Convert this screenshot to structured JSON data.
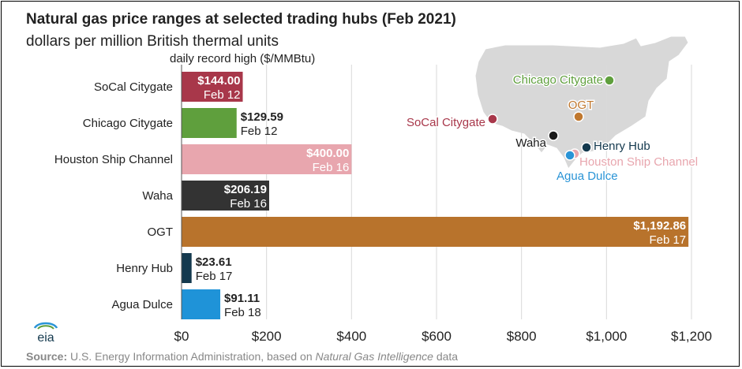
{
  "title": "Natural gas price ranges at selected trading hubs (Feb 2021)",
  "subtitle": "dollars per million British thermal units",
  "source_label": "Source:",
  "source_text": " U.S. Energy Information Administration, based on ",
  "source_italic": "Natural Gas Intelligence",
  "source_end": " data",
  "logo_text": "eia",
  "map_labels": [
    {
      "label": "Chicago Citygate",
      "color": "#5f9f3d"
    },
    {
      "label": "OGT",
      "color": "#c0782f"
    },
    {
      "label": "SoCal Citygate",
      "color": "#a8374a"
    },
    {
      "label": "Waha",
      "color": "#1a1a1a"
    },
    {
      "label": "Henry Hub",
      "color": "#14394e"
    },
    {
      "label": "Houston Ship Channel",
      "color": "#e8a6ae"
    },
    {
      "label": "Agua Dulce",
      "color": "#2a94d6"
    }
  ],
  "chart_data": {
    "type": "bar",
    "orientation": "horizontal",
    "title": "Natural gas price ranges at selected trading hubs (Feb 2021)",
    "subtitle": "dollars per million British thermal units",
    "series_title": "daily record high ($/MMBtu)",
    "categories": [
      "SoCal Citygate",
      "Chicago Citygate",
      "Houston Ship Channel",
      "Waha",
      "OGT",
      "Henry Hub",
      "Agua Dulce"
    ],
    "values": [
      144.0,
      129.59,
      400.0,
      206.19,
      1192.86,
      23.61,
      91.11
    ],
    "value_labels": [
      "$144.00",
      "$129.59",
      "$400.00",
      "$206.19",
      "$1,192.86",
      "$23.61",
      "$91.11"
    ],
    "date_labels": [
      "Feb 12",
      "Feb 12",
      "Feb 16",
      "Feb 16",
      "Feb 17",
      "Feb 17",
      "Feb 18"
    ],
    "colors": [
      "#a8374a",
      "#5f9f3d",
      "#e8a6ae",
      "#333333",
      "#b8732c",
      "#14394e",
      "#1f93d8"
    ],
    "xlim": [
      0,
      1300
    ],
    "xticks": [
      0,
      200,
      400,
      600,
      800,
      1000,
      1200
    ],
    "xtick_labels": [
      "$0",
      "$200",
      "$400",
      "$600",
      "$800",
      "$1,000",
      "$1,200"
    ],
    "grid": true
  }
}
